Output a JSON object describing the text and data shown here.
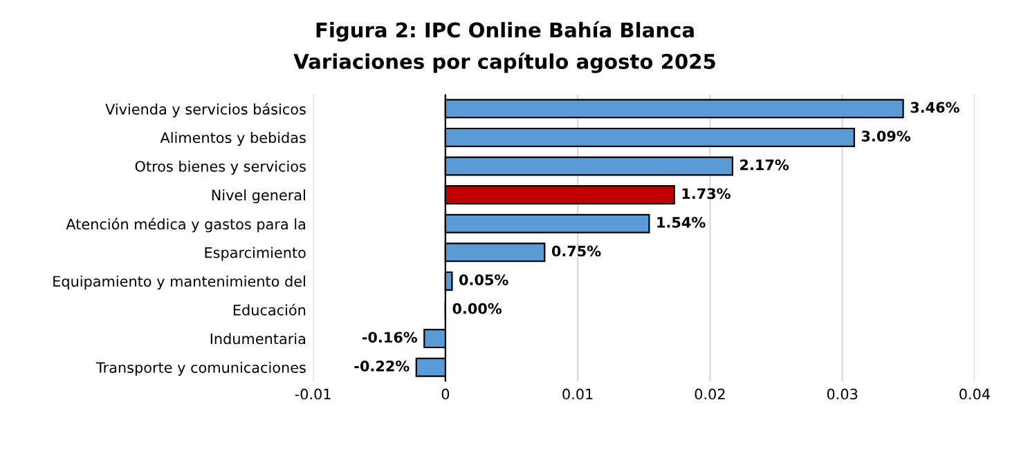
{
  "chart_data": {
    "type": "bar",
    "orientation": "horizontal",
    "title": "Figura 2: IPC Online Bahía Blanca",
    "subtitle": "Variaciones por capítulo agosto 2025",
    "categories": [
      "Vivienda y servicios básicos",
      "Alimentos y bebidas",
      "Otros bienes y servicios",
      "Nivel general",
      "Atención médica y gastos para la",
      "Esparcimiento",
      "Equipamiento y mantenimiento del",
      "Educación",
      "Indumentaria",
      "Transporte y comunicaciones"
    ],
    "values": [
      0.0346,
      0.0309,
      0.0217,
      0.0173,
      0.0154,
      0.0075,
      0.0005,
      0.0,
      -0.0016,
      -0.0022
    ],
    "value_labels": [
      "3.46%",
      "3.09%",
      "2.17%",
      "1.73%",
      "1.54%",
      "0.75%",
      "0.05%",
      "0.00%",
      "-0.16%",
      "-0.22%"
    ],
    "colors": [
      "#5b9bd5",
      "#5b9bd5",
      "#5b9bd5",
      "#c00000",
      "#5b9bd5",
      "#5b9bd5",
      "#5b9bd5",
      "#000000",
      "#5b9bd5",
      "#5b9bd5"
    ],
    "xlim": [
      -0.01,
      0.04
    ],
    "xticks": [
      -0.01,
      0,
      0.01,
      0.02,
      0.03,
      0.04
    ],
    "grid": "x"
  }
}
